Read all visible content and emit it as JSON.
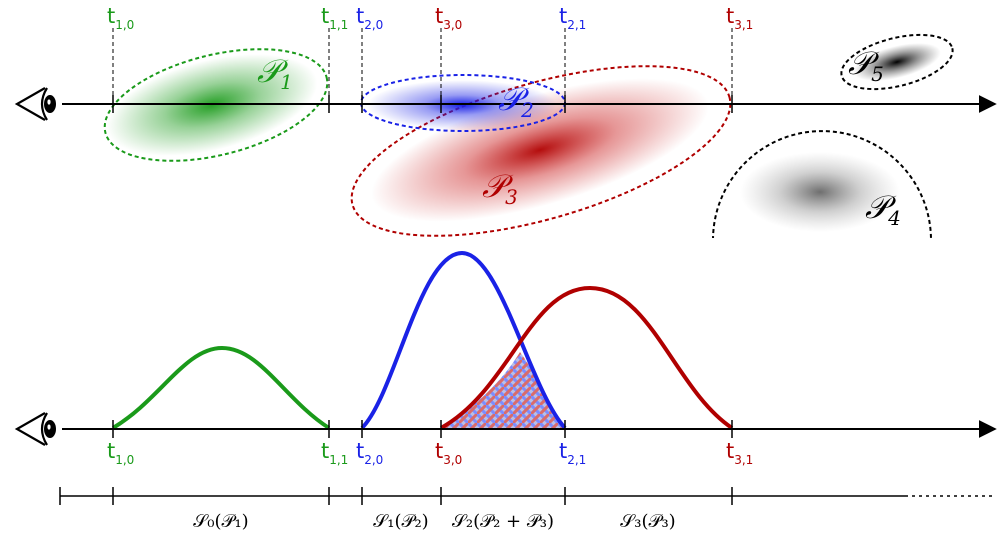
{
  "colors": {
    "green": "#1a9a1a",
    "blue": "#1a22e6",
    "red": "#b00000",
    "black": "#000000",
    "gray": "#6f6f6f",
    "hatch_blue": "#7b8cff",
    "hatch_red": "#d96b6b"
  },
  "icons": {
    "eye": "eye-icon"
  },
  "ticks": [
    {
      "id": "t10",
      "letter": "t",
      "sub": "1,0",
      "color": "green"
    },
    {
      "id": "t11",
      "letter": "t",
      "sub": "1,1",
      "color": "green"
    },
    {
      "id": "t20",
      "letter": "t",
      "sub": "2,0",
      "color": "blue"
    },
    {
      "id": "t30",
      "letter": "t",
      "sub": "3,0",
      "color": "red"
    },
    {
      "id": "t21",
      "letter": "t",
      "sub": "2,1",
      "color": "blue"
    },
    {
      "id": "t31",
      "letter": "t",
      "sub": "3,1",
      "color": "red"
    }
  ],
  "primitives": [
    {
      "id": "P1",
      "letter": "𝒫",
      "sub": "1",
      "color": "green"
    },
    {
      "id": "P2",
      "letter": "𝒫",
      "sub": "2",
      "color": "blue"
    },
    {
      "id": "P3",
      "letter": "𝒫",
      "sub": "3",
      "color": "red"
    },
    {
      "id": "P4",
      "letter": "𝒫",
      "sub": "4",
      "color": "black"
    },
    {
      "id": "P5",
      "letter": "𝒫",
      "sub": "5",
      "color": "black"
    }
  ],
  "segments": [
    {
      "id": "S0",
      "label": "𝒮₀(𝒫₁)"
    },
    {
      "id": "S1",
      "label": "𝒮₁(𝒫₂)"
    },
    {
      "id": "S2",
      "label": "𝒮₂(𝒫₂ + 𝒫₃)"
    },
    {
      "id": "S3",
      "label": "𝒮₃(𝒫₃)"
    }
  ]
}
